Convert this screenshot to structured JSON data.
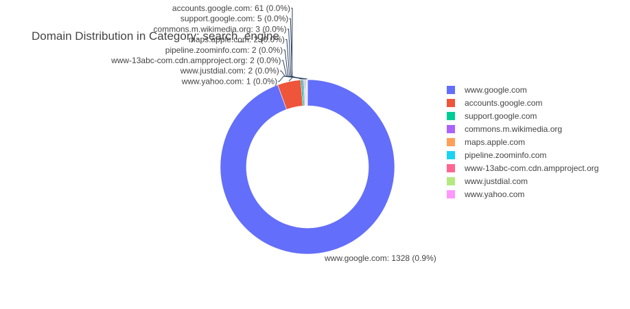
{
  "chart_data": {
    "type": "pie",
    "hole": true,
    "title": "Domain Distribution in Category: search_engine",
    "legend_position": "right",
    "slices": [
      {
        "label": "www.google.com",
        "value": 1328,
        "color": "#636efa",
        "text": "www.google.com: 1328 (0.9%)"
      },
      {
        "label": "accounts.google.com",
        "value": 61,
        "color": "#EF553B",
        "text": "accounts.google.com: 61 (0.0%)"
      },
      {
        "label": "support.google.com",
        "value": 5,
        "color": "#00cc96",
        "text": "support.google.com: 5 (0.0%)"
      },
      {
        "label": "commons.m.wikimedia.org",
        "value": 3,
        "color": "#ab63fa",
        "text": "commons.m.wikimedia.org: 3 (0.0%)"
      },
      {
        "label": "maps.apple.com",
        "value": 2,
        "color": "#FFA15A",
        "text": "maps.apple.com: 2 (0.0%)"
      },
      {
        "label": "pipeline.zoominfo.com",
        "value": 2,
        "color": "#19d3f3",
        "text": "pipeline.zoominfo.com: 2 (0.0%)"
      },
      {
        "label": "www-13abc-com.cdn.ampproject.org",
        "value": 2,
        "color": "#FF6692",
        "text": "www-13abc-com.cdn.ampproject.org: 2 (0.0%)"
      },
      {
        "label": "www.justdial.com",
        "value": 2,
        "color": "#B6E880",
        "text": "www.justdial.com: 2 (0.0%)"
      },
      {
        "label": "www.yahoo.com",
        "value": 1,
        "color": "#FF97FF",
        "text": "www.yahoo.com: 1 (0.0%)"
      }
    ]
  }
}
